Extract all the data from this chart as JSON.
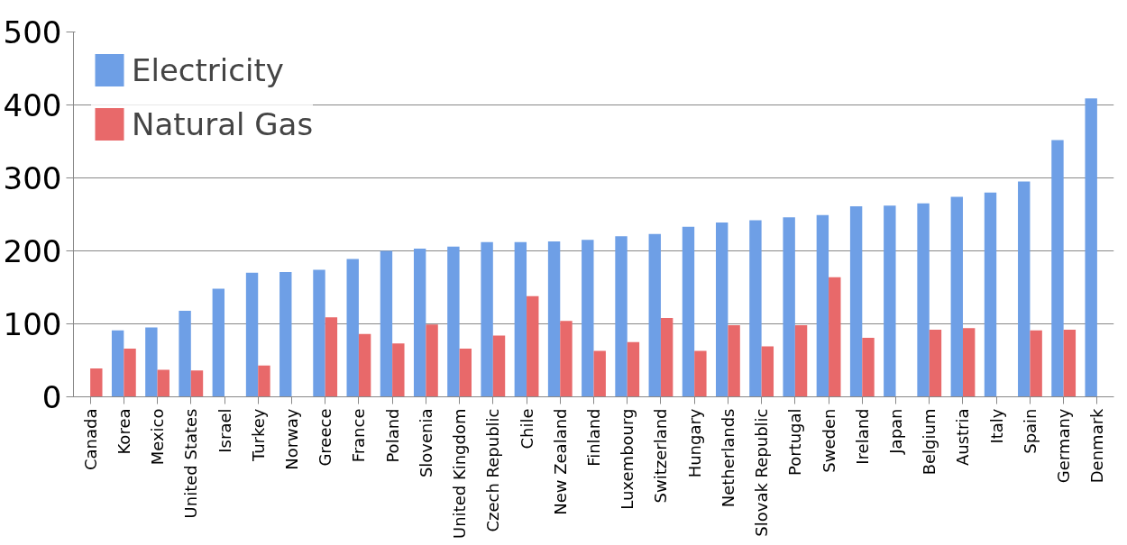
{
  "chart_data": {
    "type": "bar",
    "categories": [
      "Canada",
      "Korea",
      "Mexico",
      "United States",
      "Israel",
      "Turkey",
      "Norway",
      "Greece",
      "France",
      "Poland",
      "Slovenia",
      "United Kingdom",
      "Czech Republic",
      "Chile",
      "New Zealand",
      "Finland",
      "Luxembourg",
      "Switzerland",
      "Hungary",
      "Netherlands",
      "Slovak Republic",
      "Portugal",
      "Sweden",
      "Ireland",
      "Japan",
      "Belgium",
      "Austria",
      "Italy",
      "Spain",
      "Germany",
      "Denmark"
    ],
    "series": [
      {
        "name": "Electricity",
        "color": "#6e9fe6",
        "values": [
          null,
          91,
          95,
          118,
          148,
          170,
          171,
          174,
          189,
          200,
          203,
          206,
          212,
          212,
          213,
          215,
          220,
          223,
          233,
          239,
          242,
          246,
          249,
          261,
          262,
          265,
          274,
          280,
          295,
          352,
          409
        ]
      },
      {
        "name": "Natural Gas",
        "color": "#e8696a",
        "values": [
          39,
          66,
          37,
          36,
          null,
          43,
          null,
          109,
          86,
          73,
          99,
          66,
          84,
          138,
          104,
          63,
          75,
          108,
          63,
          98,
          69,
          98,
          164,
          81,
          null,
          92,
          94,
          null,
          91,
          92,
          null
        ]
      }
    ],
    "ylim": [
      0,
      500
    ],
    "yticks": [
      0,
      100,
      200,
      300,
      400,
      500
    ],
    "grid": "y",
    "legend": "top left"
  }
}
